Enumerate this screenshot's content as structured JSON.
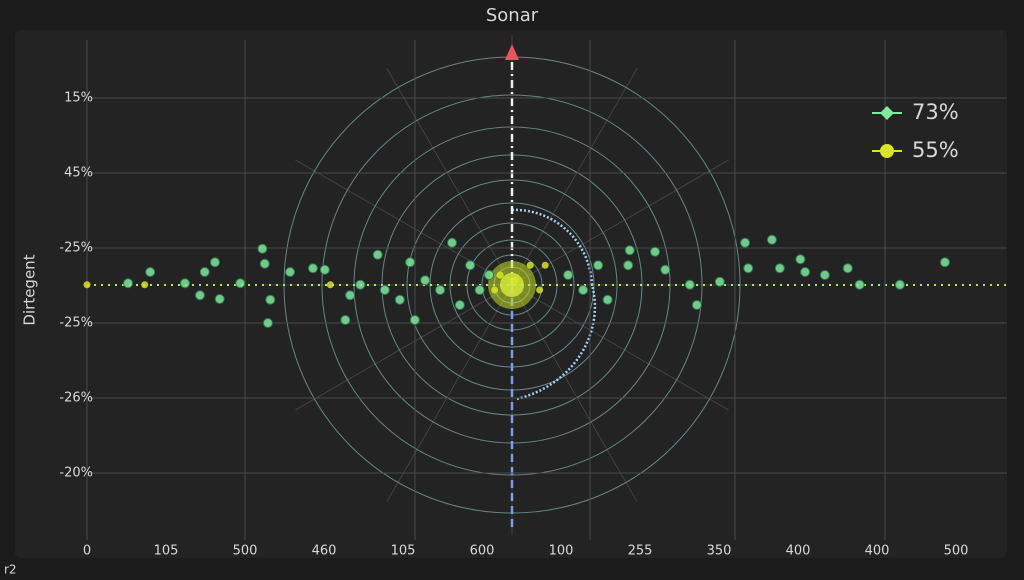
{
  "chart_data": {
    "type": "scatter",
    "title": "Sonar",
    "y_label": "Dirtegent",
    "corner_label": "r2",
    "categories": [
      "0",
      "105",
      "500",
      "460",
      "105",
      "600",
      "100",
      "255",
      "350",
      "400",
      "400",
      "500"
    ],
    "y_categories": [
      "15%",
      "45%",
      "-25%",
      "-25%",
      "-26%",
      "-20%"
    ],
    "series": [
      {
        "name": "73%",
        "color": "#7ee89c",
        "x": [
          0.8,
          0.52,
          1.24,
          1.49,
          1.62,
          1.43,
          1.68,
          1.94,
          2.22,
          2.25,
          2.29,
          2.32,
          2.57,
          2.86,
          3.01,
          3.27,
          3.33,
          3.46,
          3.68,
          3.77,
          3.96,
          4.09,
          4.15,
          4.28,
          4.47,
          4.62,
          4.72,
          4.85,
          4.97,
          5.09,
          6.09,
          6.28,
          6.47,
          6.59,
          6.85,
          6.87,
          7.19,
          7.32,
          7.63,
          7.72,
          8.01,
          8.33,
          8.37,
          8.67,
          8.77,
          9.03,
          9.09,
          9.34,
          9.63,
          9.78,
          10.29,
          10.86
        ],
        "values": [
          2.32,
          2.47,
          2.47,
          2.32,
          2.19,
          2.63,
          2.68,
          2.47,
          2.01,
          2.21,
          3.0,
          2.69,
          2.32,
          2.27,
          2.29,
          2.96,
          2.63,
          2.49,
          2.09,
          2.56,
          2.69,
          2.19,
          2.96,
          2.43,
          2.56,
          1.93,
          2.76,
          2.23,
          2.56,
          2.36,
          2.36,
          2.56,
          2.23,
          2.69,
          2.23,
          2.03,
          2.05,
          2.29,
          2.49,
          2.76,
          2.45,
          1.93,
          2.27,
          1.89,
          2.27,
          2.15,
          2.32,
          2.36,
          2.27,
          2.49,
          2.49,
          2.19
        ]
      },
      {
        "name": "55%",
        "color": "#d7e624",
        "x": [
          0.0,
          0.73,
          3.08,
          5.16,
          5.23,
          5.42,
          5.61,
          5.73,
          5.8
        ],
        "values": [
          2.49,
          2.49,
          2.49,
          2.56,
          2.36,
          2.43,
          2.23,
          2.56,
          2.23
        ]
      }
    ]
  }
}
